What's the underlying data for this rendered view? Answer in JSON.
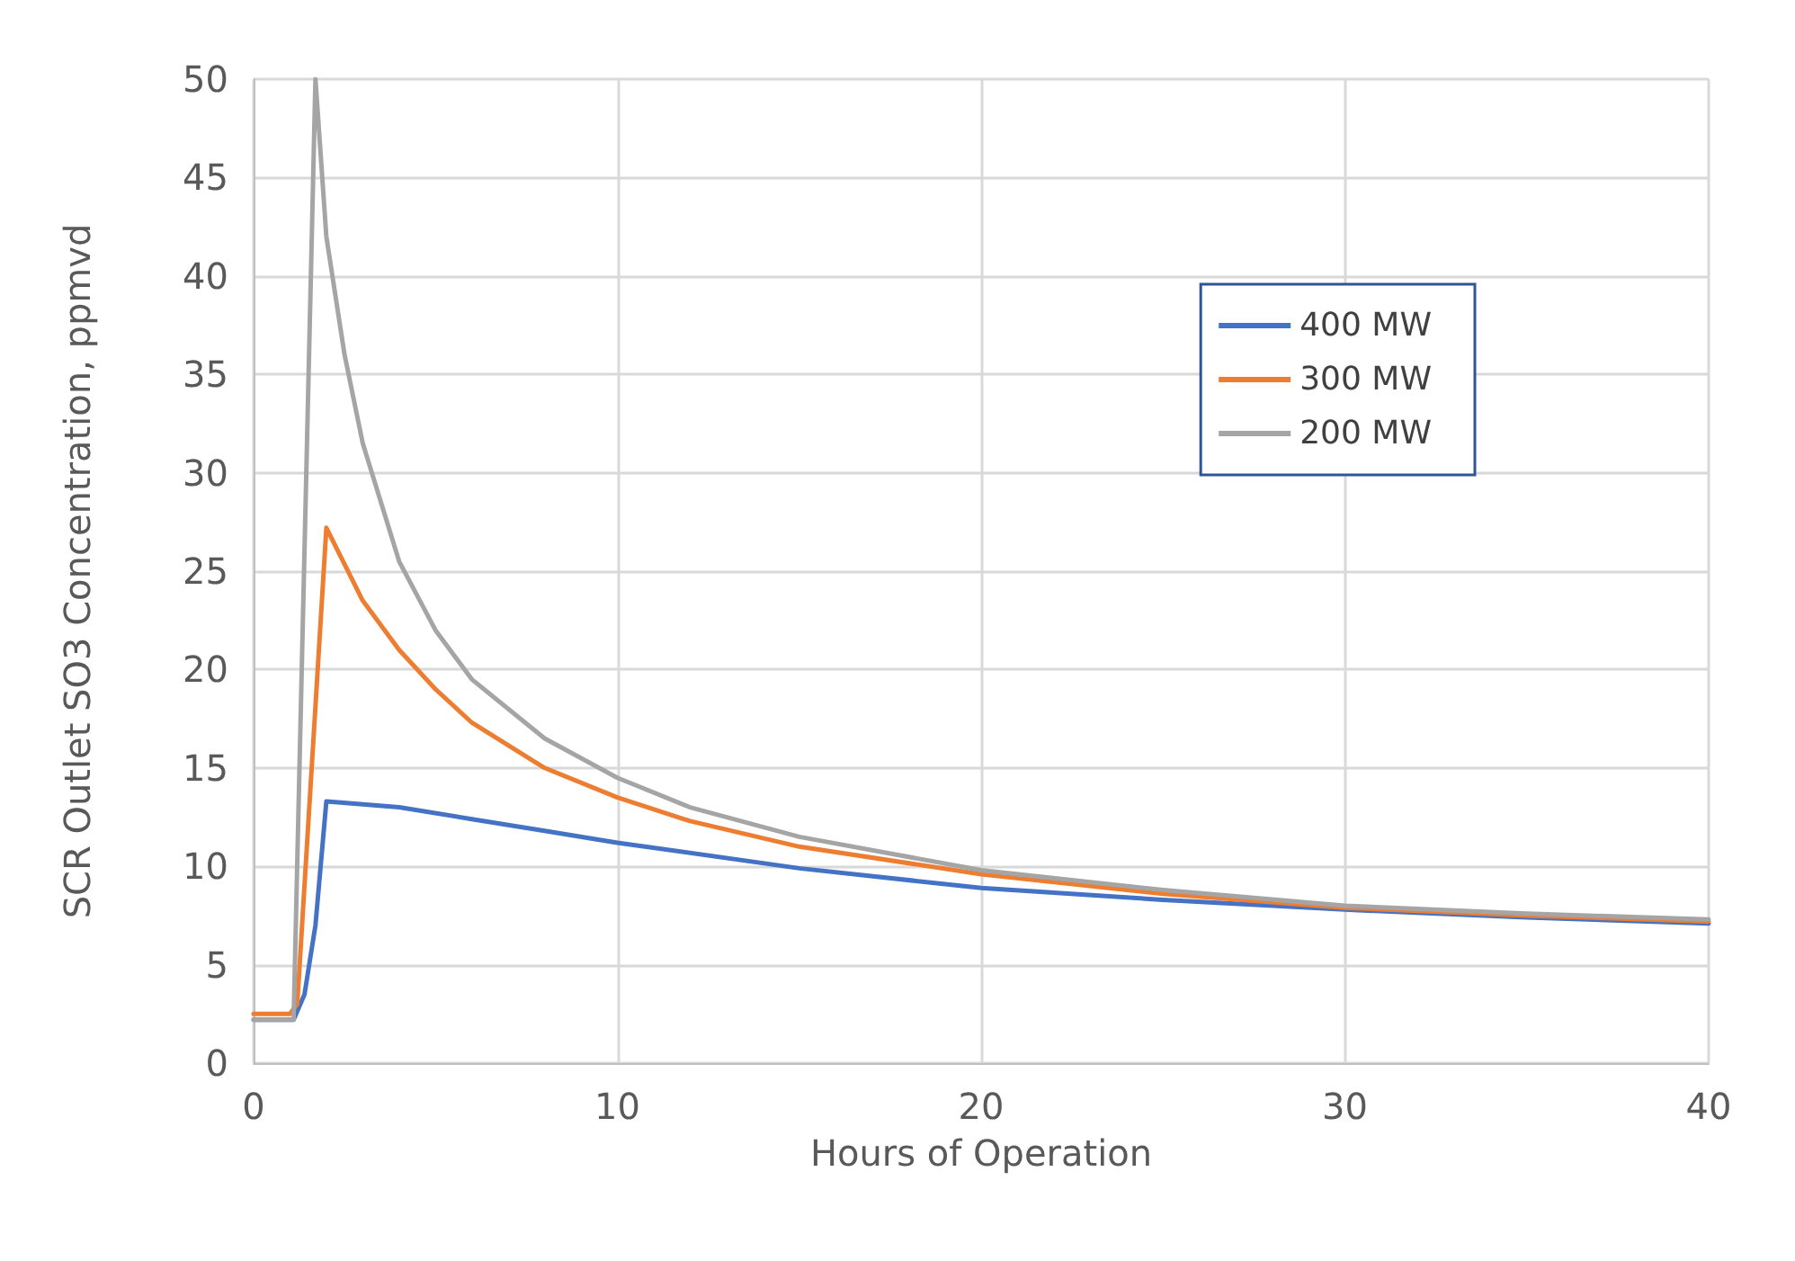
{
  "chart_data": {
    "type": "line",
    "xlabel": "Hours of Operation",
    "ylabel": "SCR Outlet SO3 Concentration, ppmvd",
    "xlim": [
      0,
      40
    ],
    "xticks": [
      0,
      10,
      20,
      30,
      40
    ],
    "ylim": [
      0,
      50
    ],
    "yticks": [
      0,
      5,
      10,
      15,
      20,
      25,
      30,
      35,
      40,
      45,
      50
    ],
    "grid": true,
    "legend": "top right",
    "marker": "none",
    "line_style": "solid",
    "series": [
      {
        "name": "400 MW",
        "color": "#4472c4",
        "x": [
          0,
          1.1,
          1.4,
          1.7,
          2.0,
          4,
          6,
          8,
          10,
          15,
          20,
          25,
          30,
          35,
          40
        ],
        "values": [
          2.2,
          2.2,
          3.5,
          7,
          13.3,
          13,
          12.4,
          11.8,
          11.2,
          9.9,
          8.9,
          8.3,
          7.8,
          7.4,
          7.1
        ]
      },
      {
        "name": "300 MW",
        "color": "#ed7d31",
        "x": [
          0,
          1.0,
          1.2,
          2.0,
          3,
          4,
          5,
          6,
          8,
          10,
          12,
          15,
          20,
          25,
          30,
          35,
          40
        ],
        "values": [
          2.5,
          2.5,
          3,
          27.2,
          23.5,
          21,
          19,
          17.3,
          15,
          13.5,
          12.3,
          11,
          9.6,
          8.6,
          7.9,
          7.5,
          7.2
        ]
      },
      {
        "name": "200 MW",
        "color": "#a5a5a5",
        "x": [
          0,
          1.1,
          1.7,
          2,
          2.5,
          3,
          4,
          5,
          6,
          8,
          10,
          12,
          15,
          20,
          25,
          30,
          35,
          40
        ],
        "values": [
          2.2,
          2.2,
          50,
          42,
          36,
          31.5,
          25.5,
          22,
          19.5,
          16.5,
          14.5,
          13,
          11.5,
          9.8,
          8.8,
          8,
          7.6,
          7.3
        ]
      }
    ]
  }
}
